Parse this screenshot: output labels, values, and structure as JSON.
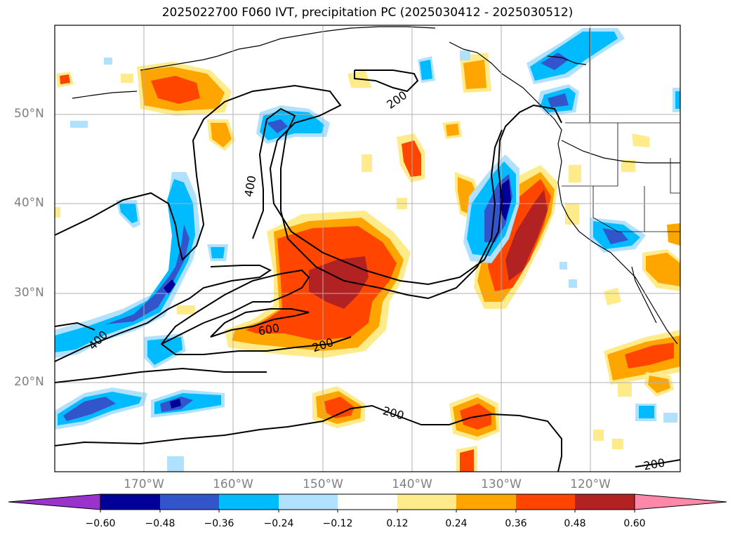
{
  "title": "2025022700 F060 IVT, precipitation PC (2025030412 - 2025030512)",
  "lat_labels": [
    "50°N",
    "40°N",
    "30°N",
    "20°N"
  ],
  "lon_labels": [
    "170°W",
    "160°W",
    "150°W",
    "140°W",
    "130°W",
    "120°W"
  ],
  "contour_labels": [
    "200",
    "400",
    "600",
    "400",
    "200",
    "200",
    "200"
  ],
  "colorbar": {
    "ticks": [
      "−0.60",
      "−0.48",
      "−0.36",
      "−0.24",
      "−0.12",
      "0.12",
      "0.24",
      "0.36",
      "0.48",
      "0.60"
    ],
    "colors": [
      "#9933cc",
      "#000099",
      "#3355cc",
      "#00bbff",
      "#b0e2ff",
      "#ffffff",
      "#ffeb8a",
      "#ffa500",
      "#ff4500",
      "#b22222",
      "#ff88aa"
    ]
  },
  "colors": {
    "neg_light": "#b0e2ff",
    "neg_mid": "#00bbff",
    "neg_strong": "#3355cc",
    "neg_max": "#000099",
    "pos_light": "#ffeb8a",
    "pos_mid": "#ffa500",
    "pos_strong": "#ff4500",
    "pos_max": "#b22222",
    "grid": "#b0b0b0"
  }
}
